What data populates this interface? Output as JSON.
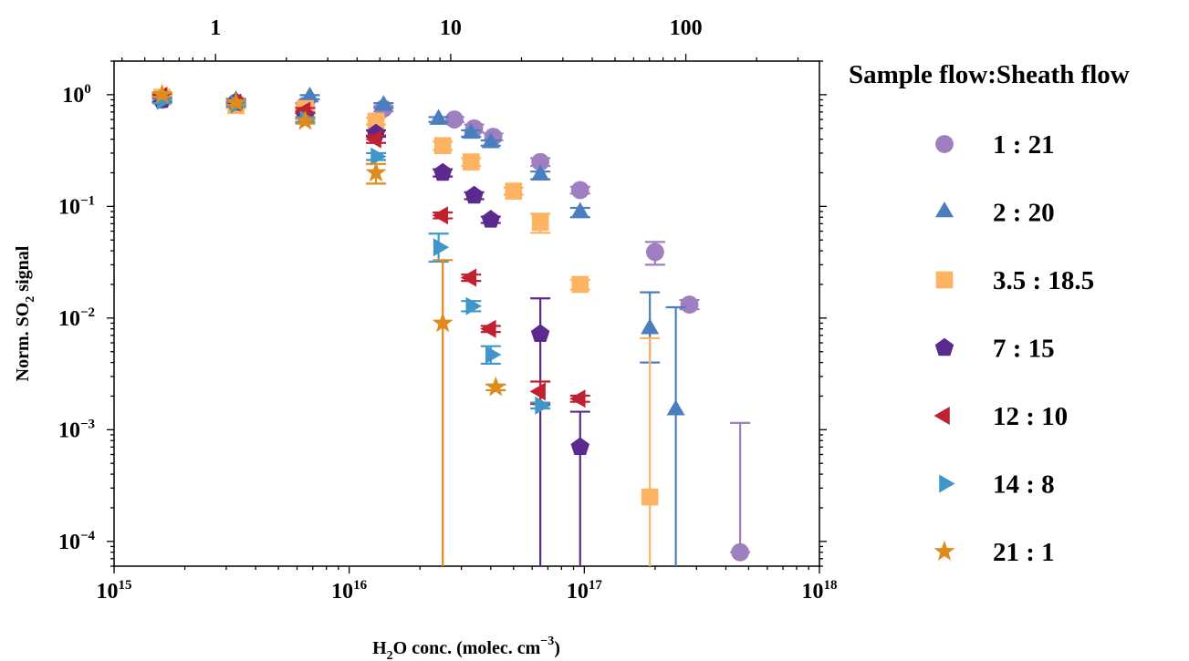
{
  "chart_data": {
    "type": "scatter",
    "xlabel": {
      "main": "H",
      "sub": "2",
      "rest": "O conc. (molec. cm",
      "sup": "−3",
      "end": ")"
    },
    "ylabel": {
      "main": "Norm. SO",
      "sub": "2",
      "rest": " signal"
    },
    "x_scale": "log",
    "y_scale": "log",
    "xlim": [
      1000000000000000.0,
      1e+18
    ],
    "ylim": [
      6e-05,
      2
    ],
    "x_ticks": [
      {
        "value": 1000000000000000.0,
        "base": "10",
        "exp": "15"
      },
      {
        "value": 1e+16,
        "base": "10",
        "exp": "16"
      },
      {
        "value": 1e+17,
        "base": "10",
        "exp": "17"
      },
      {
        "value": 1e+18,
        "base": "10",
        "exp": "18"
      }
    ],
    "y_ticks": [
      {
        "value": 1,
        "base": "10",
        "exp": "0"
      },
      {
        "value": 0.1,
        "base": "10",
        "exp": "−1"
      },
      {
        "value": 0.01,
        "base": "10",
        "exp": "−2"
      },
      {
        "value": 0.001,
        "base": "10",
        "exp": "−3"
      },
      {
        "value": 0.0001,
        "base": "10",
        "exp": "−4"
      }
    ],
    "top_axis": {
      "scale": "log",
      "factor": 3.7e-16,
      "ticks": [
        {
          "value": 1,
          "label": "1"
        },
        {
          "value": 10,
          "label": "10"
        },
        {
          "value": 100,
          "label": "100"
        }
      ]
    },
    "grid": false,
    "legend": {
      "title": "Sample flow:Sheath flow",
      "position": "right"
    },
    "series": [
      {
        "name": "1 : 21",
        "color": "#9e7fbf",
        "marker": "circle",
        "points": [
          {
            "x": 1600000000000000.0,
            "y": 0.9,
            "lo": 0.86,
            "hi": 0.94
          },
          {
            "x": 3300000000000000.0,
            "y": 0.85,
            "lo": 0.81,
            "hi": 0.89
          },
          {
            "x": 6500000000000000.0,
            "y": 0.8,
            "lo": 0.76,
            "hi": 0.84
          },
          {
            "x": 1.4e+16,
            "y": 0.75,
            "lo": 0.71,
            "hi": 0.79
          },
          {
            "x": 2.8e+16,
            "y": 0.6,
            "lo": 0.57,
            "hi": 0.63
          },
          {
            "x": 3.4e+16,
            "y": 0.5,
            "lo": 0.46,
            "hi": 0.54
          },
          {
            "x": 4.1e+16,
            "y": 0.42,
            "lo": 0.39,
            "hi": 0.45
          },
          {
            "x": 6.5e+16,
            "y": 0.25,
            "lo": 0.23,
            "hi": 0.27
          },
          {
            "x": 9.6e+16,
            "y": 0.14,
            "lo": 0.13,
            "hi": 0.15
          },
          {
            "x": 2e+17,
            "y": 0.039,
            "lo": 0.03,
            "hi": 0.048
          },
          {
            "x": 2.8e+17,
            "y": 0.0132,
            "lo": 0.012,
            "hi": 0.0145
          },
          {
            "x": 4.6e+17,
            "y": 8e-05,
            "lo": 8e-05,
            "hi": 0.00115
          }
        ]
      },
      {
        "name": "2 : 20",
        "color": "#4a7ebf",
        "marker": "triangle-up",
        "points": [
          {
            "x": 1600000000000000.0,
            "y": 0.95,
            "lo": 0.91,
            "hi": 0.99
          },
          {
            "x": 3300000000000000.0,
            "y": 0.88,
            "lo": 0.84,
            "hi": 0.92
          },
          {
            "x": 6800000000000000.0,
            "y": 0.95,
            "lo": 0.91,
            "hi": 0.99
          },
          {
            "x": 1.4e+16,
            "y": 0.8,
            "lo": 0.76,
            "hi": 0.84
          },
          {
            "x": 2.4e+16,
            "y": 0.6,
            "lo": 0.57,
            "hi": 0.63
          },
          {
            "x": 3.3e+16,
            "y": 0.45,
            "lo": 0.42,
            "hi": 0.48
          },
          {
            "x": 4e+16,
            "y": 0.37,
            "lo": 0.35,
            "hi": 0.39
          },
          {
            "x": 6.5e+16,
            "y": 0.19,
            "lo": 0.175,
            "hi": 0.205
          },
          {
            "x": 9.6e+16,
            "y": 0.088,
            "lo": 0.08,
            "hi": 0.097
          },
          {
            "x": 1.9e+17,
            "y": 0.008,
            "lo": 0.004,
            "hi": 0.017
          },
          {
            "x": 2.45e+17,
            "y": 0.0015,
            "lo": 6e-05,
            "hi": 0.0125
          }
        ]
      },
      {
        "name": "3.5 : 18.5",
        "color": "#fdb462",
        "marker": "square",
        "points": [
          {
            "x": 1600000000000000.0,
            "y": 0.95,
            "lo": 0.91,
            "hi": 0.99
          },
          {
            "x": 3300000000000000.0,
            "y": 0.8,
            "lo": 0.76,
            "hi": 0.84
          },
          {
            "x": 6500000000000000.0,
            "y": 0.75,
            "lo": 0.71,
            "hi": 0.79
          },
          {
            "x": 1.3e+16,
            "y": 0.58,
            "lo": 0.54,
            "hi": 0.62
          },
          {
            "x": 2.5e+16,
            "y": 0.35,
            "lo": 0.32,
            "hi": 0.38
          },
          {
            "x": 3.3e+16,
            "y": 0.25,
            "lo": 0.23,
            "hi": 0.27
          },
          {
            "x": 5e+16,
            "y": 0.137,
            "lo": 0.127,
            "hi": 0.147
          },
          {
            "x": 6.5e+16,
            "y": 0.072,
            "lo": 0.058,
            "hi": 0.086
          },
          {
            "x": 9.6e+16,
            "y": 0.02,
            "lo": 0.018,
            "hi": 0.022
          },
          {
            "x": 1.9e+17,
            "y": 0.00025,
            "lo": 6e-05,
            "hi": 0.0066
          }
        ]
      },
      {
        "name": "7 : 15",
        "color": "#5b2a8e",
        "marker": "pentagon",
        "points": [
          {
            "x": 1600000000000000.0,
            "y": 0.9,
            "lo": 0.86,
            "hi": 0.94
          },
          {
            "x": 3300000000000000.0,
            "y": 0.85,
            "lo": 0.81,
            "hi": 0.89
          },
          {
            "x": 6500000000000000.0,
            "y": 0.65,
            "lo": 0.61,
            "hi": 0.69
          },
          {
            "x": 1.3e+16,
            "y": 0.45,
            "lo": 0.42,
            "hi": 0.48
          },
          {
            "x": 2.5e+16,
            "y": 0.2,
            "lo": 0.185,
            "hi": 0.215
          },
          {
            "x": 3.4e+16,
            "y": 0.125,
            "lo": 0.116,
            "hi": 0.134
          },
          {
            "x": 4e+16,
            "y": 0.076,
            "lo": 0.071,
            "hi": 0.081
          },
          {
            "x": 6.5e+16,
            "y": 0.0072,
            "lo": 6e-05,
            "hi": 0.015
          },
          {
            "x": 9.6e+16,
            "y": 0.0007,
            "lo": 6e-05,
            "hi": 0.00145
          }
        ]
      },
      {
        "name": "12 : 10",
        "color": "#c0202f",
        "marker": "triangle-left",
        "points": [
          {
            "x": 1600000000000000.0,
            "y": 0.98,
            "lo": 0.94,
            "hi": 1.02
          },
          {
            "x": 3300000000000000.0,
            "y": 0.85,
            "lo": 0.81,
            "hi": 0.89
          },
          {
            "x": 6500000000000000.0,
            "y": 0.72,
            "lo": 0.68,
            "hi": 0.76
          },
          {
            "x": 1.3e+16,
            "y": 0.4,
            "lo": 0.37,
            "hi": 0.43
          },
          {
            "x": 2.5e+16,
            "y": 0.083,
            "lo": 0.078,
            "hi": 0.088
          },
          {
            "x": 3.3e+16,
            "y": 0.023,
            "lo": 0.0215,
            "hi": 0.0245
          },
          {
            "x": 4e+16,
            "y": 0.008,
            "lo": 0.0075,
            "hi": 0.0085
          },
          {
            "x": 6.5e+16,
            "y": 0.0022,
            "lo": 0.0017,
            "hi": 0.0027
          },
          {
            "x": 9.6e+16,
            "y": 0.0019,
            "lo": 0.00178,
            "hi": 0.00202
          }
        ]
      },
      {
        "name": "14 : 8",
        "color": "#3f97c9",
        "marker": "triangle-right",
        "points": [
          {
            "x": 1600000000000000.0,
            "y": 0.88,
            "lo": 0.84,
            "hi": 0.92
          },
          {
            "x": 3300000000000000.0,
            "y": 0.82,
            "lo": 0.78,
            "hi": 0.86
          },
          {
            "x": 6500000000000000.0,
            "y": 0.6,
            "lo": 0.57,
            "hi": 0.63
          },
          {
            "x": 1.3e+16,
            "y": 0.28,
            "lo": 0.26,
            "hi": 0.3
          },
          {
            "x": 2.4e+16,
            "y": 0.043,
            "lo": 0.032,
            "hi": 0.057
          },
          {
            "x": 3.3e+16,
            "y": 0.0128,
            "lo": 0.0115,
            "hi": 0.0142
          },
          {
            "x": 4e+16,
            "y": 0.0047,
            "lo": 0.0039,
            "hi": 0.0056
          },
          {
            "x": 6.5e+16,
            "y": 0.00165,
            "lo": 0.00155,
            "hi": 0.00175
          }
        ]
      },
      {
        "name": "21 : 1",
        "color": "#e08b1e",
        "marker": "star",
        "points": [
          {
            "x": 1600000000000000.0,
            "y": 1.0,
            "lo": 0.96,
            "hi": 1.04
          },
          {
            "x": 3300000000000000.0,
            "y": 0.85,
            "lo": 0.81,
            "hi": 0.89
          },
          {
            "x": 6500000000000000.0,
            "y": 0.58,
            "lo": 0.55,
            "hi": 0.61
          },
          {
            "x": 1.3e+16,
            "y": 0.2,
            "lo": 0.16,
            "hi": 0.24
          },
          {
            "x": 2.5e+16,
            "y": 0.009,
            "lo": 6e-05,
            "hi": 0.033
          },
          {
            "x": 4.2e+16,
            "y": 0.0024,
            "lo": 0.00226,
            "hi": 0.00254
          }
        ]
      }
    ]
  }
}
